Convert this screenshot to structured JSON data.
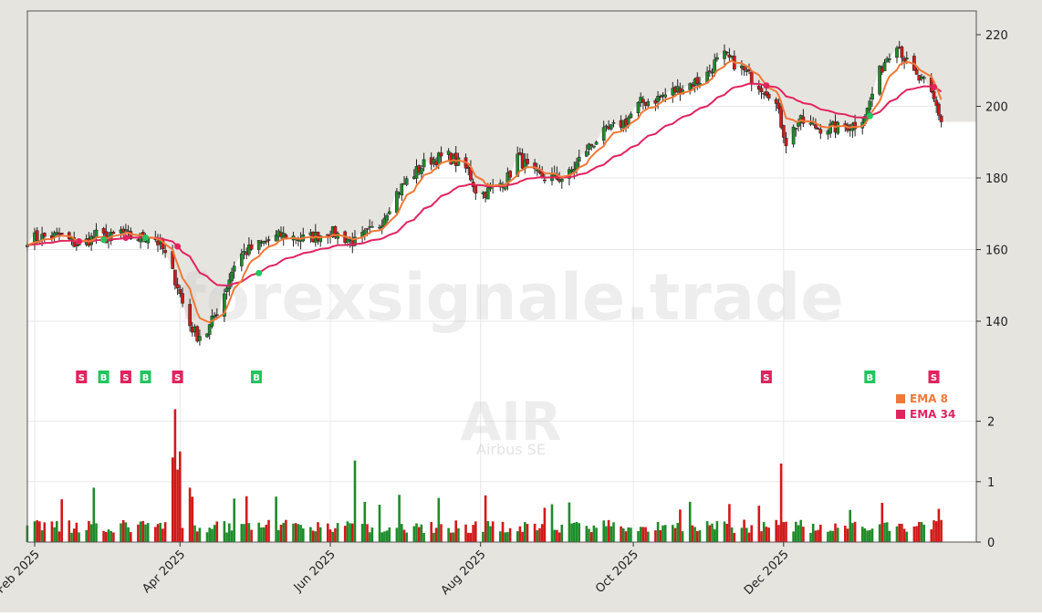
{
  "chart_data": {
    "type": "candlestick",
    "symbol": "AIR",
    "company": "Airbus SE",
    "watermark": "forexsignale.trade",
    "x_tick_labels": [
      "Feb 2025",
      "Apr 2025",
      "Jun 2025",
      "Aug 2025",
      "Oct 2025",
      "Dec 2025"
    ],
    "x_tick_days": [
      0,
      59,
      120,
      181,
      243,
      304
    ],
    "price_axis": {
      "ylim": [
        123,
        227
      ],
      "ticks": [
        140,
        160,
        180,
        200,
        220
      ]
    },
    "volume_axis": {
      "ylim": [
        0,
        2.2
      ],
      "ticks": [
        0,
        1,
        2
      ]
    },
    "legend": [
      {
        "name": "EMA 8",
        "color": "#f07838"
      },
      {
        "name": "EMA 34",
        "color": "#e0245e"
      }
    ],
    "colors": {
      "up": "#1e8c2a",
      "down": "#d11a1a",
      "ema8": "#f07838",
      "ema34": "#e0245e",
      "buy_marker": "#22c55e",
      "sell_marker": "#e0245e",
      "background": "#ffffff",
      "frame": "#e6e4df"
    },
    "price_anchors": [
      [
        -3,
        163
      ],
      [
        10,
        164
      ],
      [
        18,
        161
      ],
      [
        25,
        164
      ],
      [
        30,
        163
      ],
      [
        35,
        165
      ],
      [
        40,
        163
      ],
      [
        48,
        164
      ],
      [
        52,
        160
      ],
      [
        58,
        150
      ],
      [
        62,
        140
      ],
      [
        66,
        136
      ],
      [
        70,
        137
      ],
      [
        76,
        146
      ],
      [
        82,
        158
      ],
      [
        90,
        161
      ],
      [
        100,
        164
      ],
      [
        110,
        163
      ],
      [
        120,
        165
      ],
      [
        130,
        162
      ],
      [
        140,
        167
      ],
      [
        146,
        175
      ],
      [
        152,
        180
      ],
      [
        160,
        185
      ],
      [
        168,
        186
      ],
      [
        176,
        182
      ],
      [
        180,
        175
      ],
      [
        186,
        177
      ],
      [
        192,
        180
      ],
      [
        196,
        186
      ],
      [
        202,
        181
      ],
      [
        208,
        180
      ],
      [
        216,
        180
      ],
      [
        224,
        188
      ],
      [
        230,
        192
      ],
      [
        240,
        196
      ],
      [
        246,
        201
      ],
      [
        252,
        202
      ],
      [
        262,
        205
      ],
      [
        272,
        208
      ],
      [
        276,
        212
      ],
      [
        280,
        214
      ],
      [
        286,
        211
      ],
      [
        294,
        206
      ],
      [
        300,
        203
      ],
      [
        305,
        190
      ],
      [
        310,
        196
      ],
      [
        318,
        194
      ],
      [
        326,
        194
      ],
      [
        334,
        195
      ],
      [
        338,
        199
      ],
      [
        342,
        208
      ],
      [
        346,
        214
      ],
      [
        350,
        218
      ],
      [
        354,
        212
      ],
      [
        358,
        208
      ],
      [
        362,
        206
      ],
      [
        366,
        200
      ],
      [
        368,
        196
      ]
    ],
    "signals": [
      {
        "day": 19,
        "label": "S"
      },
      {
        "day": 28,
        "label": "B"
      },
      {
        "day": 37,
        "label": "S"
      },
      {
        "day": 45,
        "label": "B"
      },
      {
        "day": 58,
        "label": "S"
      },
      {
        "day": 90,
        "label": "B"
      },
      {
        "day": 297,
        "label": "S"
      },
      {
        "day": 339,
        "label": "B"
      },
      {
        "day": 365,
        "label": "S"
      }
    ]
  }
}
